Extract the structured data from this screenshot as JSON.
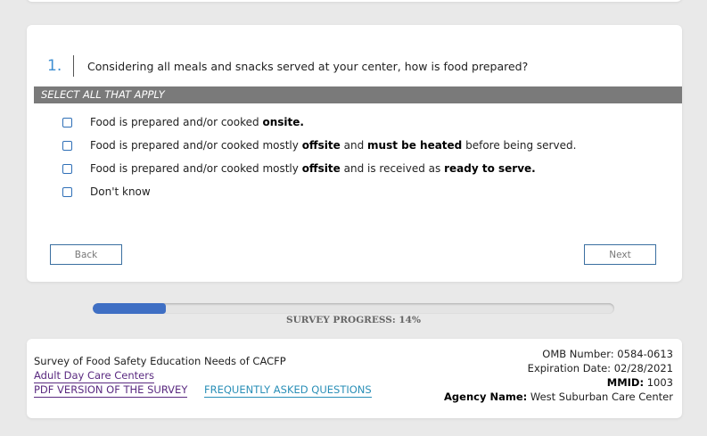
{
  "question": {
    "number": "1.",
    "text": "Considering all meals and snacks served at your center, how is food prepared?",
    "instruction": "SELECT ALL THAT APPLY",
    "options": [
      {
        "pre": "Food is prepared and/or cooked ",
        "b1": "onsite.",
        "mid": "",
        "b2": "",
        "post": ""
      },
      {
        "pre": "Food is prepared and/or cooked mostly ",
        "b1": "offsite",
        "mid": " and ",
        "b2": "must be heated",
        "post": " before being served."
      },
      {
        "pre": "Food is prepared and/or cooked mostly ",
        "b1": "offsite",
        "mid": " and is received as ",
        "b2": "ready to serve.",
        "post": ""
      },
      {
        "pre": "Don't know",
        "b1": "",
        "mid": "",
        "b2": "",
        "post": ""
      }
    ]
  },
  "nav": {
    "back_label": "Back",
    "next_label": "Next"
  },
  "progress": {
    "label": "SURVEY PROGRESS: 14%",
    "fraction": 0.14
  },
  "footer": {
    "survey_title": "Survey of Food Safety Education Needs of CACFP",
    "category_link": "Adult Day Care Centers",
    "pdf_link": "PDF VERSION OF THE SURVEY",
    "faq_link": "FREQUENTLY ASKED QUESTIONS",
    "omb": "OMB Number: 0584-0613",
    "expiration": "Expiration Date: 02/28/2021",
    "mmid_label": "MMID:",
    "mmid_value": " 1003",
    "agency_label": "Agency Name:",
    "agency_value": " West Suburban Care Center"
  },
  "colors": {
    "accent_blue": "#3f8fd2",
    "instruction_bar": "#7a7a7a",
    "progress_fill": "#3f6fc4",
    "link_purple": "#5a2a80",
    "link_teal": "#2a8fb7"
  }
}
